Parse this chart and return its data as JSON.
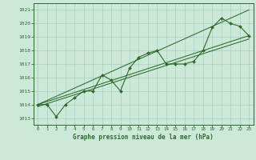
{
  "x": [
    0,
    1,
    2,
    3,
    4,
    5,
    6,
    7,
    8,
    9,
    10,
    11,
    12,
    13,
    14,
    15,
    16,
    17,
    18,
    19,
    20,
    21,
    22,
    23
  ],
  "y": [
    1014.0,
    1014.0,
    1013.1,
    1014.0,
    1014.5,
    1015.0,
    1015.0,
    1016.2,
    1015.8,
    1015.0,
    1016.7,
    1017.5,
    1017.8,
    1018.0,
    1017.0,
    1017.0,
    1017.0,
    1017.2,
    1018.0,
    1019.7,
    1020.4,
    1020.0,
    1019.8,
    1019.1
  ],
  "line_color": "#2d6a2d",
  "bg_color": "#cce8d8",
  "grid_color": "#aacfbf",
  "xlabel": "Graphe pression niveau de la mer (hPa)",
  "ylim": [
    1012.5,
    1021.5
  ],
  "xlim": [
    -0.5,
    23.5
  ],
  "yticks": [
    1013,
    1014,
    1015,
    1016,
    1017,
    1018,
    1019,
    1020,
    1021
  ],
  "xticks": [
    0,
    1,
    2,
    3,
    4,
    5,
    6,
    7,
    8,
    9,
    10,
    11,
    12,
    13,
    14,
    15,
    16,
    17,
    18,
    19,
    20,
    21,
    22,
    23
  ],
  "trend_lines": [
    {
      "x0": 0,
      "y0": 1014.0,
      "x1": 23,
      "y1": 1019.1
    },
    {
      "x0": 0,
      "y0": 1013.85,
      "x1": 23,
      "y1": 1018.85
    },
    {
      "x0": 0,
      "y0": 1014.0,
      "x1": 23,
      "y1": 1021.0
    }
  ]
}
